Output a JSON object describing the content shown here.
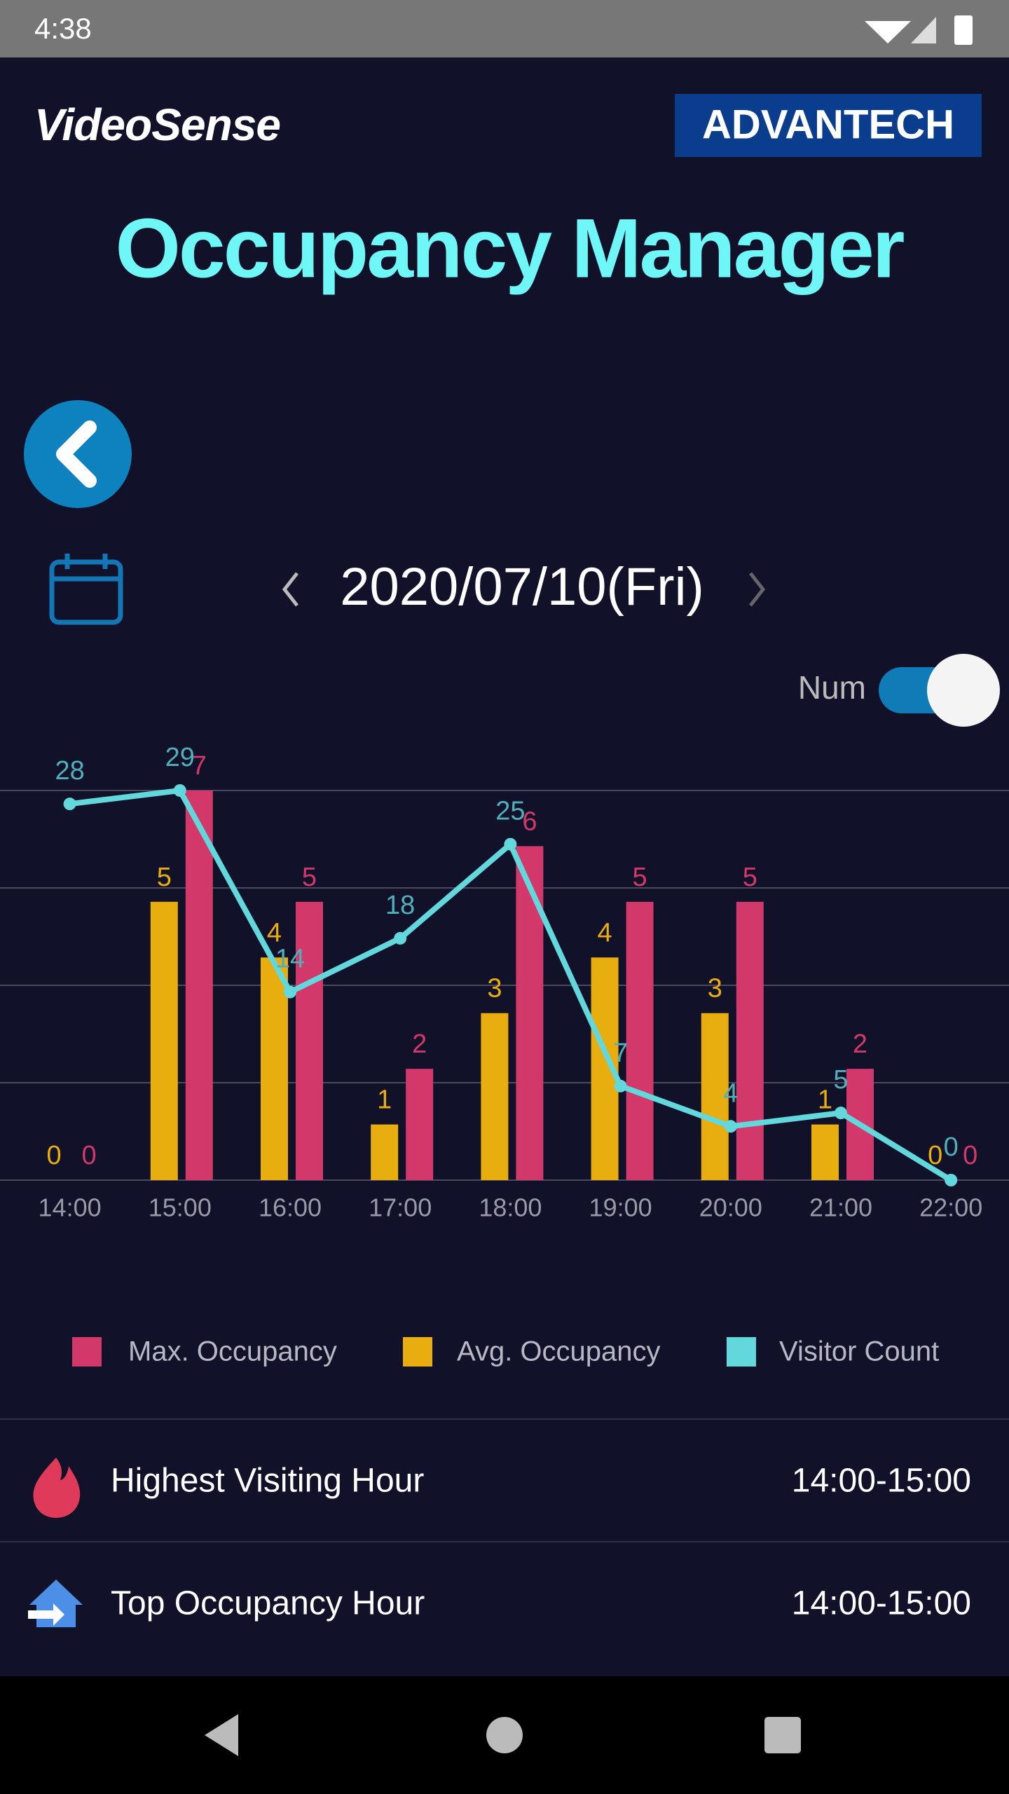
{
  "status": {
    "time": "4:38"
  },
  "header": {
    "brand": "VideoSense",
    "logo": "ADVANTECH",
    "title": "Occupancy Manager"
  },
  "date": {
    "label": "2020/07/10(Fri)"
  },
  "toggle": {
    "label": "Num"
  },
  "chart_data": {
    "type": "bar_line",
    "categories": [
      "14:00",
      "15:00",
      "16:00",
      "17:00",
      "18:00",
      "19:00",
      "20:00",
      "21:00",
      "22:00"
    ],
    "series": [
      {
        "name": "Max. Occupancy",
        "color": "#d2386a",
        "type": "bar",
        "values": [
          0,
          7,
          5,
          2,
          6,
          5,
          5,
          2,
          0
        ]
      },
      {
        "name": "Avg. Occupancy",
        "color": "#e8ad0e",
        "type": "bar",
        "values": [
          0,
          5,
          4,
          1,
          3,
          4,
          3,
          1,
          0
        ]
      },
      {
        "name": "Visitor Count",
        "color": "#62d8dc",
        "type": "line",
        "axis": "y2",
        "values": [
          28,
          29,
          14,
          18,
          25,
          7,
          4,
          5,
          0
        ]
      }
    ],
    "ylim": [
      0,
      7
    ],
    "y2lim": [
      0,
      29
    ],
    "grid": true
  },
  "stats": {
    "rows": [
      {
        "label": "Highest Visiting Hour",
        "value": "14:00-15:00"
      },
      {
        "label": "Top Occupancy Hour",
        "value": "14:00-15:00"
      }
    ]
  }
}
